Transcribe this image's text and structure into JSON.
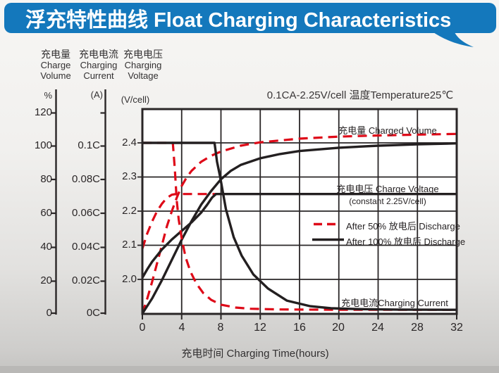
{
  "banner": {
    "title": "浮充特性曲线 Float Charging Characteristics",
    "bg_color": "#1478bc",
    "text_color": "#ffffff"
  },
  "conditions": "0.1CA-2.25V/cell  温度Temperature25℃",
  "axes": {
    "volume": {
      "label_cn": "充电量",
      "label_en1": "Charge",
      "label_en2": "Volume",
      "unit": "%",
      "ticks": [
        "120",
        "100",
        "80",
        "60",
        "40",
        "20",
        "0"
      ]
    },
    "current": {
      "label_cn": "充电电流",
      "label_en1": "Charging",
      "label_en2": "Current",
      "unit": "(A)",
      "ticks": [
        "0.1C",
        "0.08C",
        "0.06C",
        "0.04C",
        "0.02C",
        "0C"
      ]
    },
    "voltage": {
      "label_cn": "充电电压",
      "label_en1": "Charging",
      "label_en2": "Voltage",
      "unit": "(V/cell)",
      "ticks": [
        "2.4",
        "2.3",
        "2.2",
        "2.1",
        "2.0"
      ]
    },
    "x": {
      "title": "充电时间 Charging Time(hours)",
      "ticks": [
        "0",
        "4",
        "8",
        "12",
        "16",
        "20",
        "24",
        "28",
        "32"
      ]
    }
  },
  "annotations": {
    "charged_volume": "充电量 Charged Volume",
    "charge_voltage": "充电电压 Charge Voltage",
    "charge_voltage_sub": "(constant 2.25V/cell)",
    "charging_current": "充电电流Charging Current"
  },
  "legend": [
    {
      "label": "After 50%  放电后 Discharge",
      "style": "dashed",
      "color": "#de0a18"
    },
    {
      "label": "After 100%  放电后 Discharge",
      "style": "solid",
      "color": "#231f20"
    }
  ],
  "chart_data": {
    "type": "line",
    "title": "浮充特性曲线 Float Charging Characteristics",
    "xlabel": "充电时间 Charging Time(hours)",
    "x_range": [
      0,
      32
    ],
    "x_ticks": [
      0,
      4,
      8,
      12,
      16,
      20,
      24,
      28,
      32
    ],
    "grid": true,
    "legend_position": "middle-right",
    "y_axes": [
      {
        "name": "charge_volume",
        "unit": "%",
        "range": [
          0,
          120
        ],
        "ticks": [
          120,
          100,
          80,
          60,
          40,
          20,
          0
        ]
      },
      {
        "name": "charging_current",
        "unit": "A",
        "ticks_labels": [
          "0.1C",
          "0.08C",
          "0.06C",
          "0.04C",
          "0.02C",
          "0C"
        ],
        "range_c": [
          0,
          0.1
        ]
      },
      {
        "name": "charging_voltage",
        "unit": "V/cell",
        "shown_range": [
          2.0,
          2.4
        ],
        "ticks": [
          2.4,
          2.3,
          2.2,
          2.1,
          2.0
        ]
      }
    ],
    "series": [
      {
        "name": "charged_volume_after_50pct_discharge",
        "axis": "charge_volume",
        "style": "dashed",
        "color": "#de0a18",
        "points": [
          [
            0,
            0
          ],
          [
            0.5,
            9
          ],
          [
            1,
            19
          ],
          [
            1.5,
            30
          ],
          [
            2,
            41
          ],
          [
            2.5,
            52
          ],
          [
            3,
            61
          ],
          [
            3.5,
            69
          ],
          [
            4,
            76
          ],
          [
            4.5,
            81
          ],
          [
            5,
            85
          ],
          [
            6,
            90.5
          ],
          [
            7,
            94
          ],
          [
            8,
            96.5
          ],
          [
            10,
            100
          ],
          [
            12,
            102
          ],
          [
            16,
            104.2
          ],
          [
            20,
            105.4
          ],
          [
            24,
            106.1
          ],
          [
            28,
            106.6
          ],
          [
            32,
            107
          ]
        ]
      },
      {
        "name": "charged_volume_after_100pct_discharge",
        "axis": "charge_volume",
        "style": "solid",
        "color": "#231f20",
        "points": [
          [
            0,
            0
          ],
          [
            1,
            9
          ],
          [
            2,
            20
          ],
          [
            3,
            32
          ],
          [
            4,
            44
          ],
          [
            5,
            55
          ],
          [
            6,
            65
          ],
          [
            7,
            73
          ],
          [
            8,
            80
          ],
          [
            9,
            85
          ],
          [
            10,
            88.5
          ],
          [
            12,
            92.5
          ],
          [
            14,
            95
          ],
          [
            16,
            96.8
          ],
          [
            20,
            98.8
          ],
          [
            24,
            100
          ],
          [
            28,
            100.8
          ],
          [
            32,
            101.4
          ]
        ]
      },
      {
        "name": "charge_voltage_after_50pct_discharge",
        "axis": "charging_voltage",
        "style": "dashed",
        "color": "#de0a18",
        "points": [
          [
            0,
            2.09
          ],
          [
            0.5,
            2.135
          ],
          [
            1,
            2.17
          ],
          [
            1.5,
            2.2
          ],
          [
            2,
            2.222
          ],
          [
            2.5,
            2.239
          ],
          [
            3,
            2.248
          ],
          [
            3.4,
            2.25
          ],
          [
            7.5,
            2.25
          ]
        ]
      },
      {
        "name": "charge_voltage_after_100pct_discharge",
        "axis": "charging_voltage",
        "style": "solid",
        "color": "#231f20",
        "points": [
          [
            0,
            2.005
          ],
          [
            0.5,
            2.03
          ],
          [
            1,
            2.052
          ],
          [
            2,
            2.088
          ],
          [
            3,
            2.117
          ],
          [
            4,
            2.142
          ],
          [
            5,
            2.167
          ],
          [
            6,
            2.196
          ],
          [
            6.6,
            2.219
          ],
          [
            7.1,
            2.24
          ],
          [
            7.5,
            2.25
          ],
          [
            32,
            2.25
          ]
        ]
      },
      {
        "name": "charging_current_after_50pct_discharge",
        "axis": "charging_current",
        "style": "dashed",
        "color": "#de0a18",
        "points": [
          [
            0,
            0.1
          ],
          [
            3.1,
            0.1
          ],
          [
            3.3,
            0.085
          ],
          [
            3.5,
            0.066
          ],
          [
            3.7,
            0.055
          ],
          [
            4,
            0.044
          ],
          [
            4.4,
            0.033
          ],
          [
            4.9,
            0.0245
          ],
          [
            5.5,
            0.0175
          ],
          [
            6.2,
            0.012
          ],
          [
            7,
            0.008
          ],
          [
            8,
            0.0052
          ],
          [
            9.5,
            0.0035
          ],
          [
            11,
            0.0028
          ],
          [
            14,
            0.0024
          ],
          [
            20,
            0.0022
          ],
          [
            32,
            0.0022
          ]
        ]
      },
      {
        "name": "charging_current_after_100pct_discharge",
        "axis": "charging_current",
        "style": "solid",
        "color": "#231f20",
        "points": [
          [
            0,
            0.1
          ],
          [
            7.35,
            0.1
          ],
          [
            7.6,
            0.089
          ],
          [
            7.9,
            0.0806
          ],
          [
            8.5,
            0.0612
          ],
          [
            9.3,
            0.0447
          ],
          [
            10.1,
            0.034
          ],
          [
            11.3,
            0.0229
          ],
          [
            12.8,
            0.0146
          ],
          [
            14.7,
            0.0076
          ],
          [
            17.1,
            0.0043
          ],
          [
            19.2,
            0.0031
          ],
          [
            22,
            0.0026
          ],
          [
            26,
            0.0023
          ],
          [
            32,
            0.0022
          ]
        ]
      }
    ]
  }
}
